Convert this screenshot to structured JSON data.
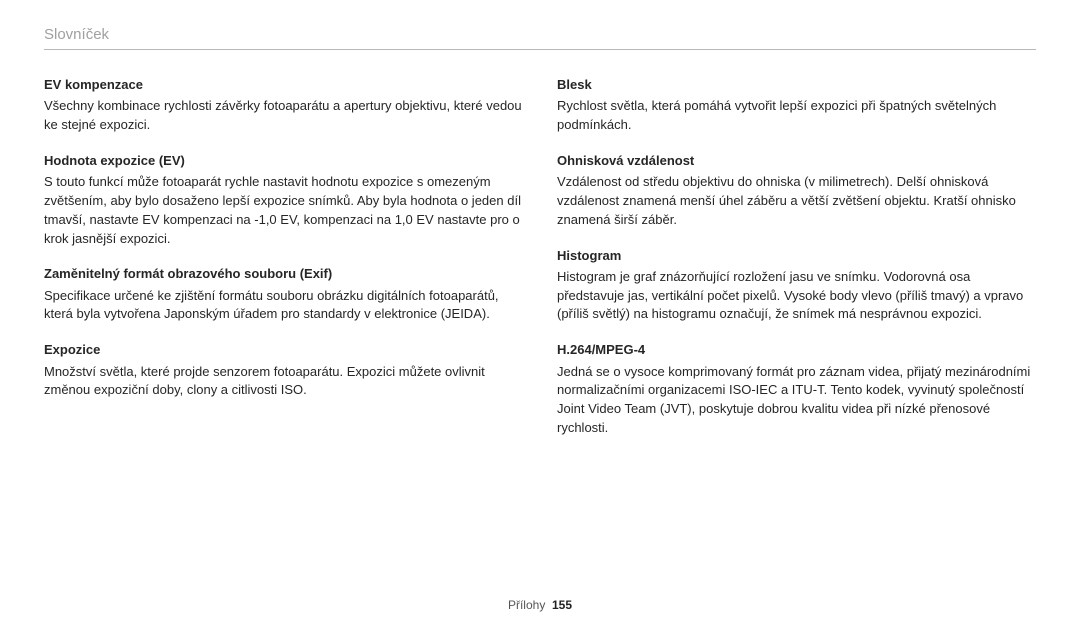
{
  "header": "Slovníček",
  "left": [
    {
      "term": "EV kompenzace",
      "def": "Všechny kombinace rychlosti závěrky fotoaparátu a apertury objektivu, které vedou ke stejné expozici."
    },
    {
      "term": "Hodnota expozice (EV)",
      "def": "S touto funkcí může fotoaparát rychle nastavit hodnotu expozice s omezeným zvětšením, aby bylo dosaženo lepší expozice snímků. Aby byla hodnota o jeden díl tmavší, nastavte EV kompenzaci na -1,0 EV, kompenzaci na 1,0 EV nastavte pro o krok jasnější expozici."
    },
    {
      "term": "Zaměnitelný formát obrazového souboru (Exif)",
      "def": "Specifikace určené ke zjištění formátu souboru obrázku digitálních fotoaparátů, která byla vytvořena Japonským úřadem pro standardy v elektronice (JEIDA)."
    },
    {
      "term": "Expozice",
      "def": "Množství světla, které projde senzorem fotoaparátu. Expozici můžete ovlivnit změnou expoziční doby, clony a citlivosti ISO."
    }
  ],
  "right": [
    {
      "term": "Blesk",
      "def": "Rychlost světla, která pomáhá vytvořit lepší expozici při špatných světelných podmínkách."
    },
    {
      "term": "Ohnisková vzdálenost",
      "def": "Vzdálenost od středu objektivu do ohniska (v milimetrech). Delší ohnisková vzdálenost znamená menší úhel záběru a větší zvětšení objektu. Kratší ohnisko znamená širší záběr."
    },
    {
      "term": "Histogram",
      "def": "Histogram je graf znázorňující rozložení jasu ve snímku. Vodorovná osa představuje jas, vertikální počet pixelů. Vysoké body vlevo (příliš tmavý) a vpravo (příliš světlý) na histogramu označují, že snímek má nesprávnou expozici."
    },
    {
      "term": "H.264/MPEG-4",
      "def": "Jedná se o vysoce komprimovaný formát pro záznam videa, přijatý mezinárodními normalizačními organizacemi ISO-IEC a ITU-T. Tento kodek, vyvinutý společností Joint Video Team (JVT), poskytuje dobrou kvalitu videa při nízké přenosové rychlosti."
    }
  ],
  "footer": {
    "label": "Přílohy",
    "page": "155"
  }
}
